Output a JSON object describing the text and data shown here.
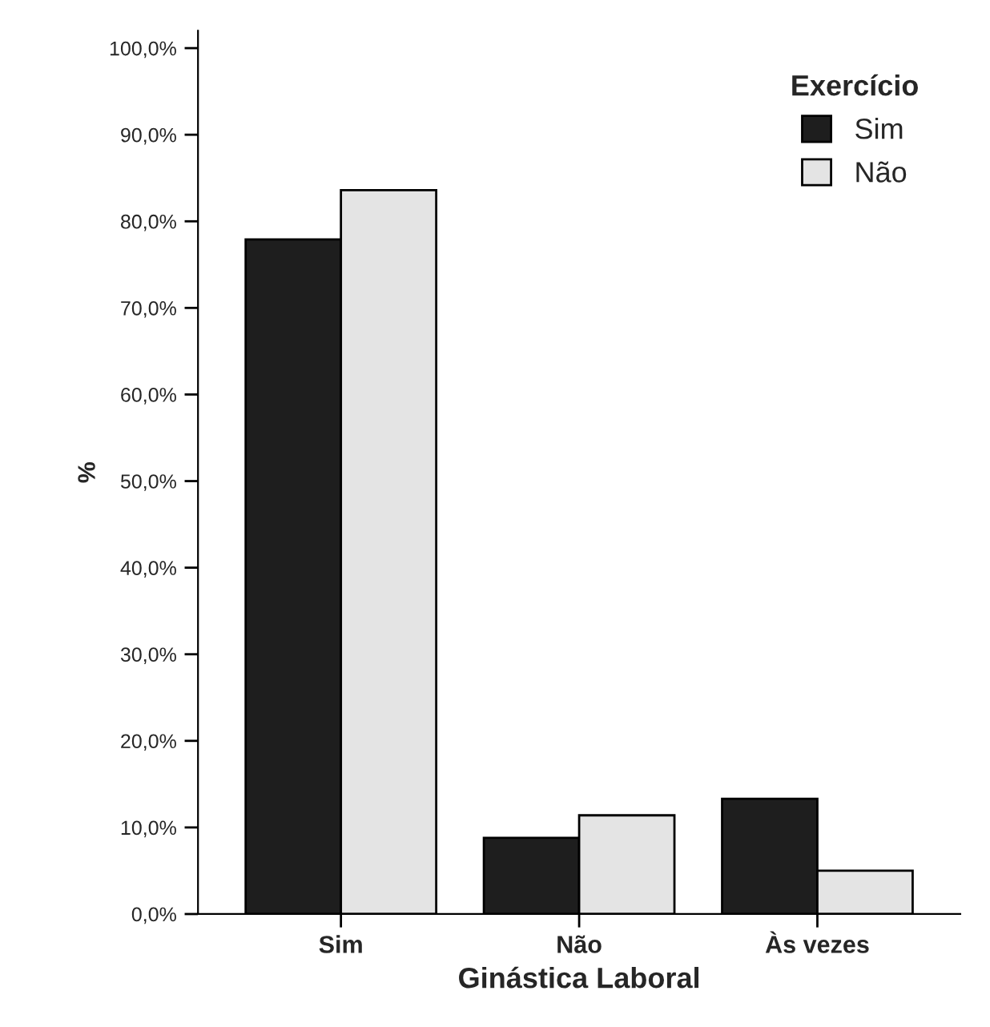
{
  "chart_data": {
    "type": "bar",
    "xlabel": "Ginástica Laboral",
    "ylabel": "%",
    "legend_title": "Exercício",
    "legend": "top right",
    "grid": false,
    "categories": [
      "Sim",
      "Não",
      "Às vezes"
    ],
    "series": [
      {
        "name": "Sim",
        "color": "#1e1e1e",
        "values": [
          77.9,
          8.8,
          13.3
        ]
      },
      {
        "name": "Não",
        "color": "#e4e4e4",
        "values": [
          83.6,
          11.4,
          5.0
        ]
      }
    ],
    "ylim": [
      0,
      102
    ],
    "yticks": [
      {
        "value": 0,
        "label": "0,0%"
      },
      {
        "value": 10,
        "label": "10,0%"
      },
      {
        "value": 20,
        "label": "20,0%"
      },
      {
        "value": 30,
        "label": "30,0%"
      },
      {
        "value": 40,
        "label": "40,0%"
      },
      {
        "value": 50,
        "label": "50,0%"
      },
      {
        "value": 60,
        "label": "60,0%"
      },
      {
        "value": 70,
        "label": "70,0%"
      },
      {
        "value": 80,
        "label": "80,0%"
      },
      {
        "value": 90,
        "label": "90,0%"
      },
      {
        "value": 100,
        "label": "100,0%"
      }
    ]
  }
}
